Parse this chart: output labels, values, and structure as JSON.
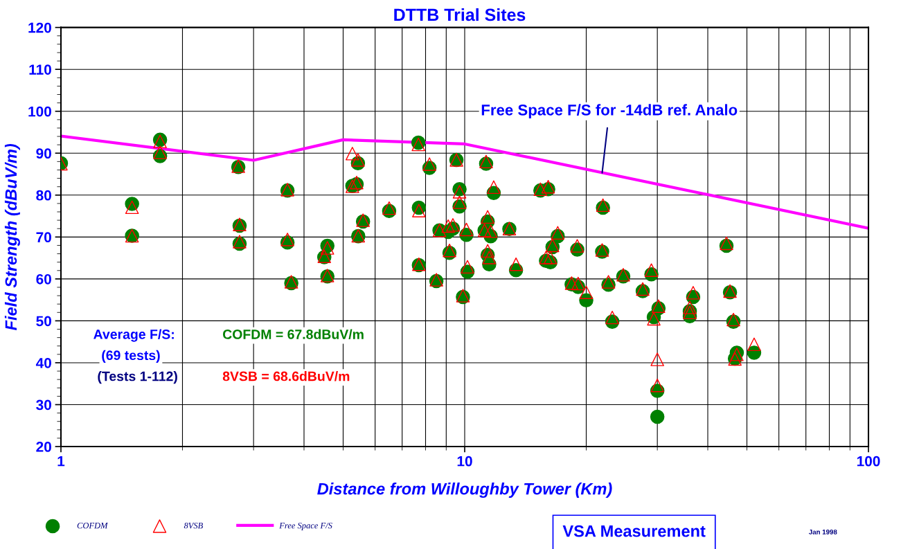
{
  "chart_data": {
    "type": "scatter",
    "title": "DTTB Trial Sites",
    "xlabel": "Distance from Willoughby Tower (Km)",
    "ylabel": "Field Strength (dBuV/m)",
    "log": "x",
    "xlim": [
      1,
      100
    ],
    "xticks": [
      1,
      10,
      100
    ],
    "ylim": [
      20,
      120
    ],
    "yticks": [
      20,
      30,
      40,
      50,
      60,
      70,
      80,
      90,
      100,
      110,
      120
    ],
    "grid": true,
    "legend": "bottom",
    "series": [
      {
        "name": "COFDM",
        "marker": "circle",
        "color": "#008000",
        "x": [
          1.0,
          1.5,
          1.5,
          1.76,
          1.76,
          2.75,
          2.77,
          2.77,
          3.64,
          3.64,
          3.72,
          4.57,
          4.49,
          4.57,
          5.44,
          5.27,
          5.4,
          5.6,
          5.45,
          6.5,
          7.68,
          7.7,
          7.7,
          8.18,
          8.51,
          8.66,
          9.1,
          9.35,
          9.54,
          9.71,
          9.71,
          9.17,
          9.9,
          10.16,
          10.1,
          11.4,
          11.2,
          11.6,
          12.9,
          11.4,
          11.5,
          13.4,
          11.3,
          11.8,
          15.4,
          16.1,
          15.9,
          16.3,
          16.5,
          17.0,
          19.0,
          18.4,
          19.1,
          20.0,
          21.9,
          22.0,
          22.7,
          23.2,
          24.7,
          27.6,
          29.0,
          29.4,
          30.2,
          30.0,
          30.0,
          36.1,
          36.1,
          36.8,
          44.5,
          45.4,
          46.3,
          47.2,
          46.7,
          52.1
        ],
        "values": [
          87.6,
          77.9,
          70.3,
          93.2,
          89.3,
          86.7,
          72.7,
          68.4,
          81.1,
          68.7,
          59.0,
          67.9,
          65.2,
          60.6,
          87.6,
          82.2,
          82.6,
          73.7,
          70.2,
          76.2,
          92.5,
          77.0,
          63.3,
          86.5,
          59.5,
          71.6,
          71.2,
          72.0,
          88.4,
          81.4,
          77.3,
          66.2,
          55.7,
          61.7,
          70.5,
          73.7,
          71.6,
          70.2,
          71.9,
          65.7,
          63.5,
          62.1,
          87.5,
          80.5,
          81.1,
          81.4,
          64.3,
          64.0,
          67.6,
          70.2,
          67.0,
          58.7,
          58.1,
          54.9,
          66.5,
          77.0,
          58.6,
          49.8,
          60.6,
          57.1,
          61.1,
          50.9,
          53.0,
          33.3,
          27.1,
          52.3,
          51.1,
          55.7,
          67.9,
          56.8,
          49.8,
          42.4,
          41.0,
          42.4
        ]
      },
      {
        "name": "8VSB",
        "marker": "triangle",
        "color": "#ff0000",
        "x": [
          1.0,
          1.5,
          1.5,
          1.76,
          1.76,
          2.75,
          2.77,
          2.77,
          3.64,
          3.64,
          3.72,
          4.57,
          4.49,
          4.57,
          5.44,
          5.27,
          5.27,
          5.4,
          5.6,
          5.45,
          6.5,
          7.68,
          7.7,
          7.7,
          8.18,
          8.51,
          8.66,
          9.1,
          9.35,
          9.54,
          9.71,
          9.71,
          9.17,
          9.9,
          10.16,
          10.1,
          11.4,
          11.2,
          11.6,
          12.9,
          11.4,
          11.5,
          13.4,
          11.3,
          11.8,
          15.4,
          16.1,
          15.9,
          16.3,
          16.5,
          17.0,
          19.0,
          18.4,
          19.1,
          20.0,
          21.9,
          22.0,
          22.7,
          23.2,
          24.7,
          27.6,
          29.0,
          29.4,
          30.2,
          30.0,
          30.0,
          36.1,
          36.1,
          36.8,
          44.5,
          45.4,
          46.3,
          47.2,
          46.7,
          52.1
        ],
        "values": [
          87.5,
          77.1,
          70.3,
          92.8,
          90.2,
          86.9,
          73.0,
          68.9,
          81.3,
          69.4,
          59.3,
          67.4,
          65.4,
          60.8,
          88.4,
          89.9,
          82.1,
          83.0,
          74.0,
          70.3,
          76.9,
          92.1,
          76.3,
          63.5,
          87.4,
          59.8,
          71.6,
          72.6,
          72.9,
          88.4,
          80.8,
          78.3,
          66.8,
          56.0,
          62.9,
          71.8,
          74.8,
          71.6,
          71.4,
          72.0,
          66.7,
          65.1,
          63.5,
          88.0,
          81.9,
          81.4,
          82.0,
          65.1,
          65.1,
          68.0,
          71.0,
          67.9,
          59.0,
          58.9,
          56.8,
          66.9,
          77.6,
          59.3,
          50.8,
          61.0,
          57.6,
          62.1,
          50.5,
          53.5,
          34.6,
          40.8,
          53.2,
          52.0,
          56.7,
          68.5,
          57.1,
          50.3,
          42.0,
          40.9,
          44.4
        ]
      },
      {
        "name": "Free Space F/S",
        "type": "line",
        "marker": "none",
        "line_style": "solid",
        "color": "#ff00ff",
        "x": [
          1,
          3,
          5,
          10,
          100
        ],
        "values": [
          94.1,
          88.3,
          93.2,
          92.2,
          72.1
        ]
      }
    ],
    "annotations": [
      {
        "text": "Free Space F/S for -14dB ref. Analo",
        "x": 21.9,
        "y": 85.3
      },
      "Average F/S:",
      "(69 tests)",
      "(Tests 1-112)",
      "COFDM = 67.8dBuV/m",
      "8VSB = 68.6dBuV/m",
      "VSA Measurement",
      "Jan 1998"
    ]
  }
}
